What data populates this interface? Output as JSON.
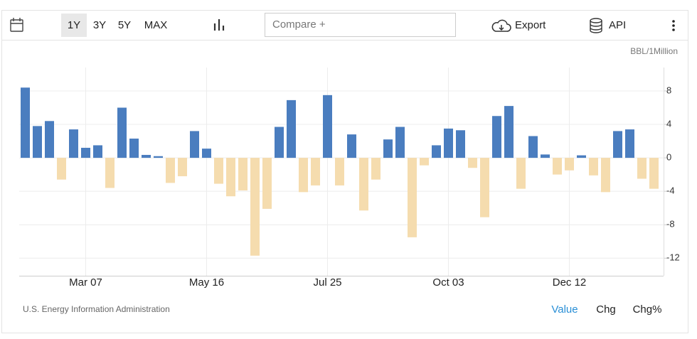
{
  "toolbar": {
    "ranges": [
      "1Y",
      "3Y",
      "5Y",
      "MAX"
    ],
    "compare": "Compare +",
    "export": "Export",
    "api": "API"
  },
  "chart_data": {
    "type": "bar",
    "unit": "BBL/1Million",
    "source": "U.S. Energy Information Administration",
    "categories": [
      null,
      null,
      null,
      null,
      null,
      "Mar 07",
      null,
      null,
      null,
      null,
      null,
      null,
      null,
      null,
      null,
      "May 16",
      null,
      null,
      null,
      null,
      null,
      null,
      null,
      null,
      null,
      "Jul 25",
      null,
      null,
      null,
      null,
      null,
      null,
      null,
      null,
      null,
      "Oct 03",
      null,
      null,
      null,
      null,
      null,
      null,
      null,
      null,
      null,
      "Dec 12",
      null,
      null,
      null,
      null,
      null,
      null,
      null
    ],
    "values": [
      8.4,
      3.8,
      4.4,
      -2.6,
      3.4,
      1.2,
      1.5,
      -3.6,
      6.0,
      2.3,
      0.35,
      0.2,
      -3.0,
      -2.2,
      3.2,
      1.1,
      -3.1,
      -4.6,
      -3.9,
      -11.7,
      -6.1,
      3.7,
      6.9,
      -4.1,
      -3.3,
      7.5,
      -3.3,
      2.8,
      -6.3,
      -2.6,
      2.2,
      3.7,
      -9.5,
      -0.9,
      1.5,
      3.5,
      3.3,
      -1.2,
      -7.1,
      5.0,
      6.2,
      -3.7,
      2.6,
      0.4,
      -2.0,
      -1.5,
      0.3,
      -2.1,
      -4.1,
      3.2,
      3.4,
      -2.5,
      -3.7
    ],
    "color_positive": "#4a7dbf",
    "color_negative": "#f5dcae",
    "ylim": [
      -14.1,
      10.8
    ],
    "yticks": [
      8,
      4,
      0,
      -4,
      -8,
      -12
    ],
    "grid": true,
    "modes": [
      "Value",
      "Chg",
      "Chg%"
    ]
  }
}
